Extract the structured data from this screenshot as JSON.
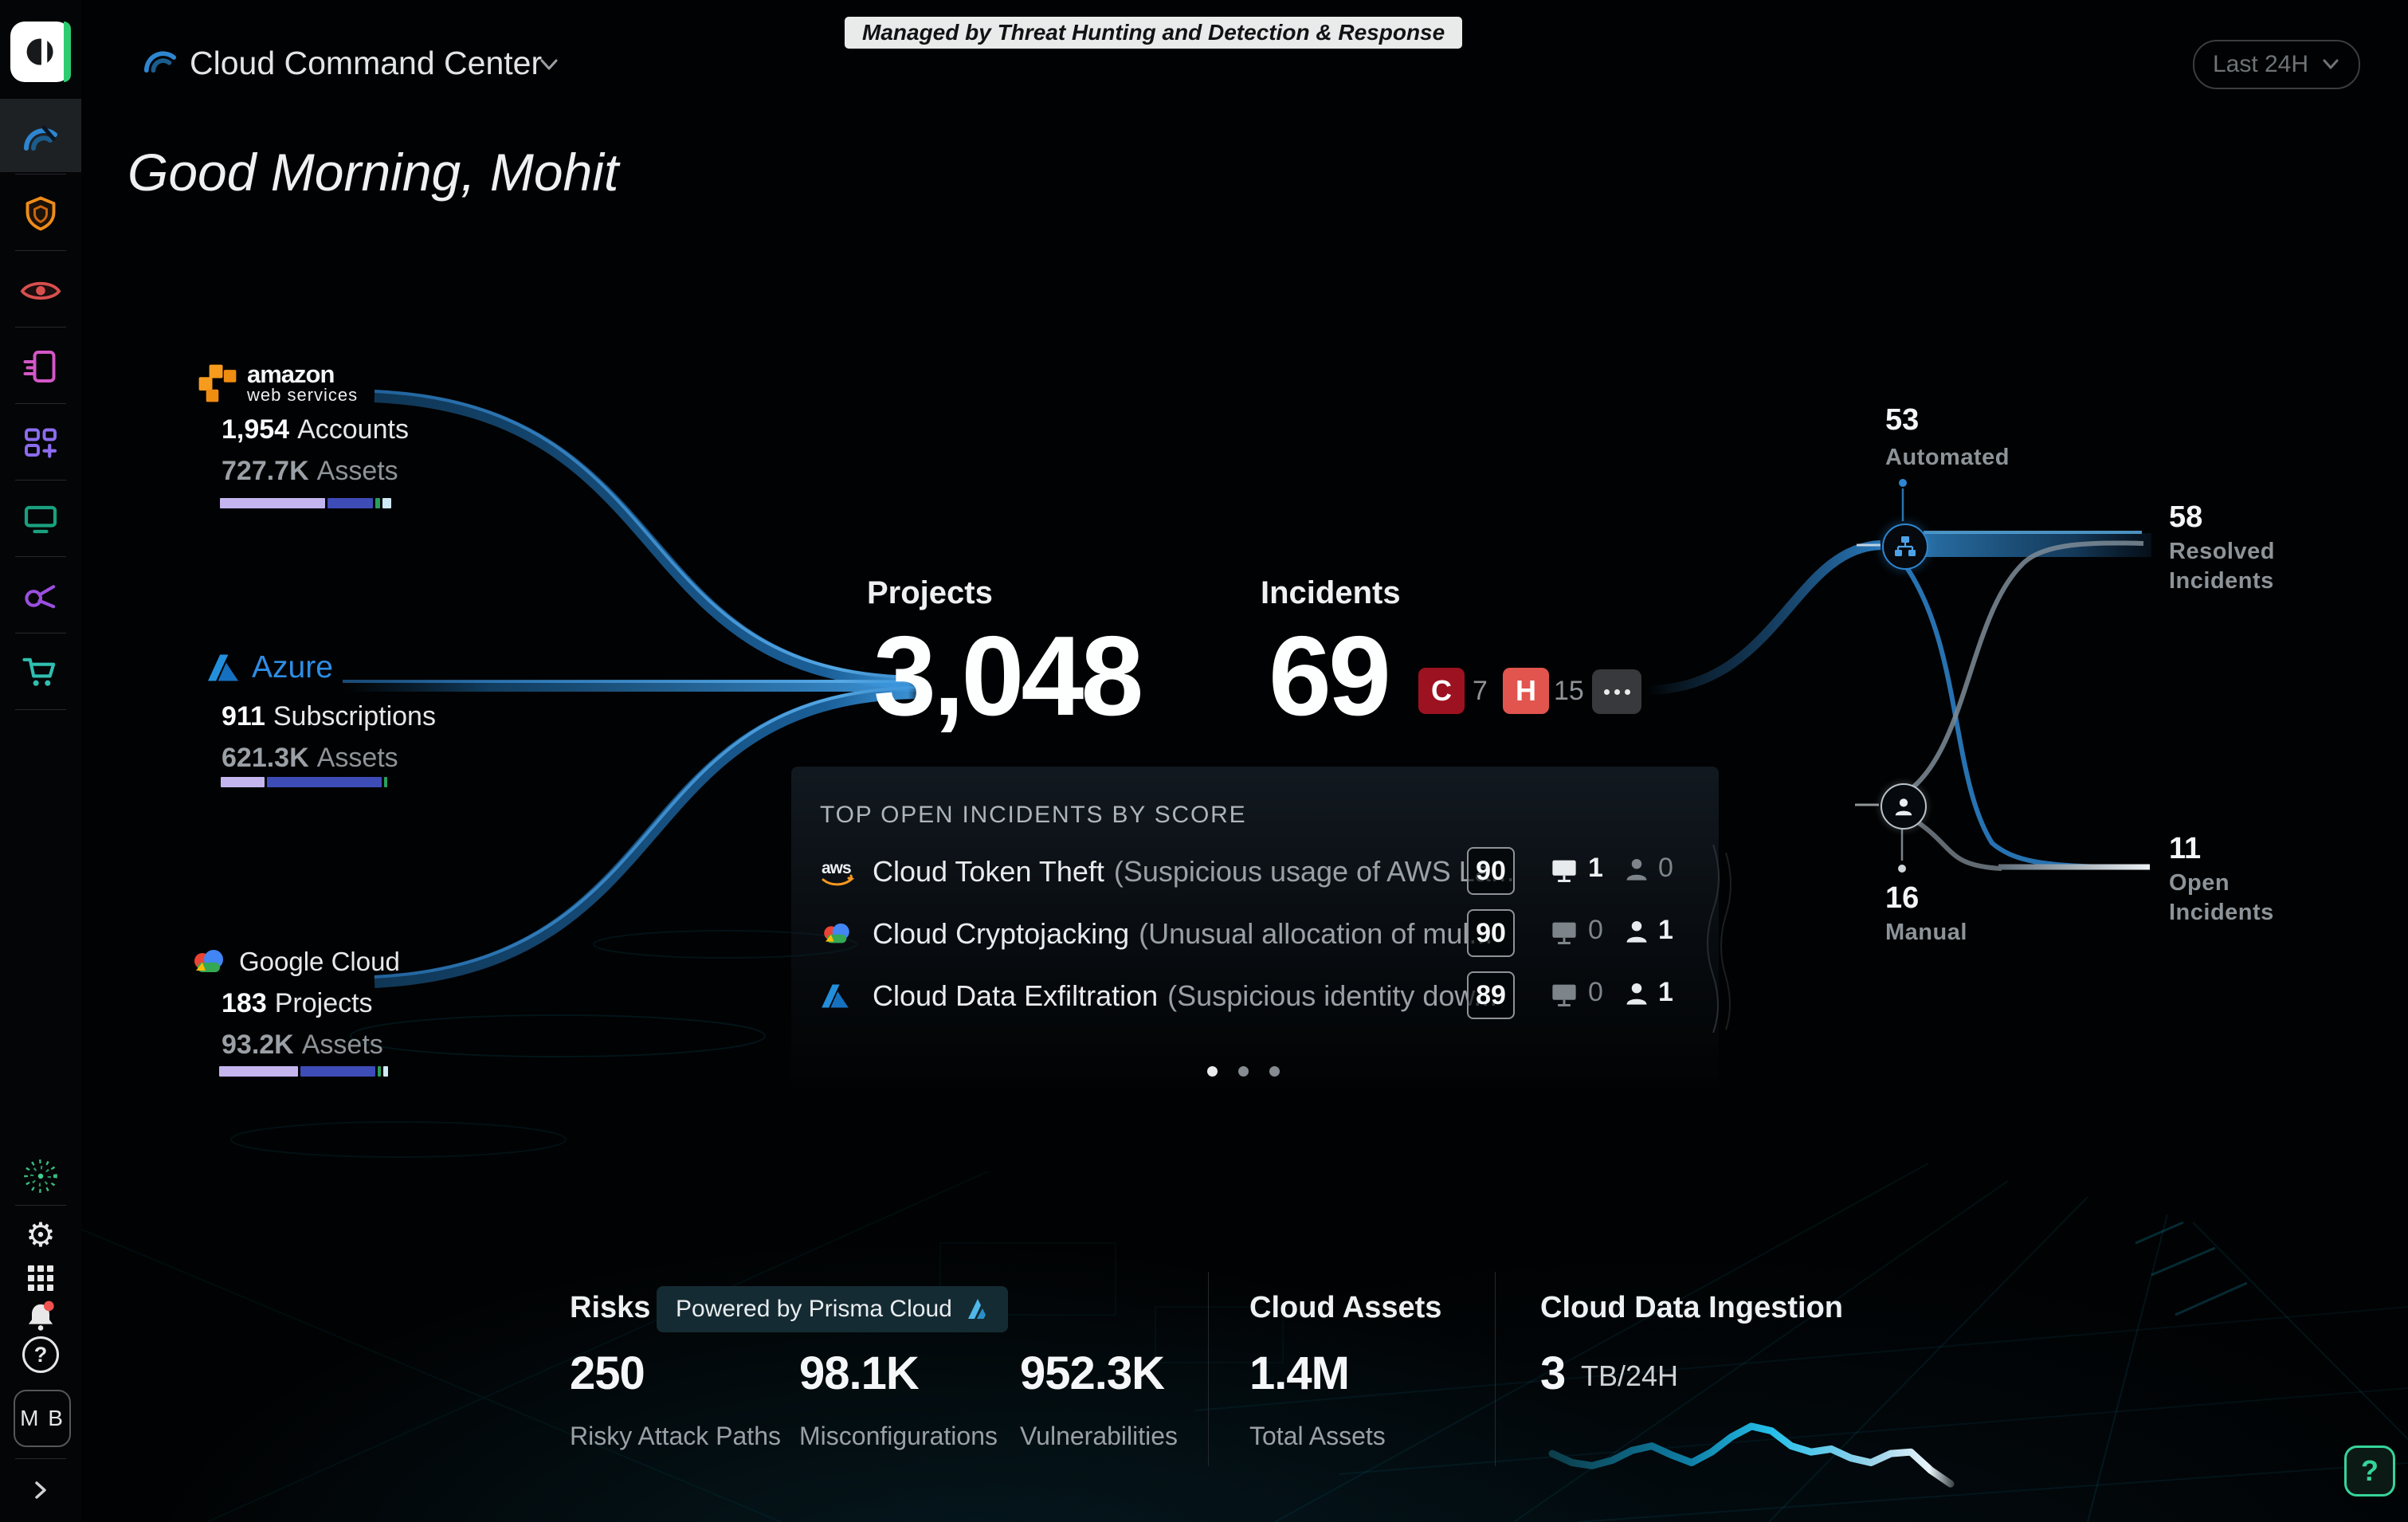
{
  "header": {
    "title": "Cloud Command Center",
    "managed_badge": "Managed by Threat Hunting and Detection & Response",
    "time_range": "Last 24H"
  },
  "greeting": "Good Morning, Mohit",
  "sidebar": {
    "logo_icon": "cortex-logo",
    "avatar": "M B",
    "items": [
      {
        "icon": "command-center-arcs-icon",
        "selected": true
      },
      {
        "icon": "shield-icon"
      },
      {
        "icon": "eye-icon"
      },
      {
        "icon": "report-document-icon"
      },
      {
        "icon": "dashboard-add-icon"
      },
      {
        "icon": "monitor-icon"
      },
      {
        "icon": "share-network-icon"
      },
      {
        "icon": "marketplace-cart-icon"
      }
    ],
    "bottom_items": [
      {
        "icon": "copilot-spiral-icon"
      },
      {
        "icon": "settings-gear-icon"
      },
      {
        "icon": "apps-grid-icon"
      },
      {
        "icon": "notifications-bell-icon",
        "has_badge": true
      },
      {
        "icon": "help-circle-icon"
      }
    ],
    "gear_glyph": "⚙"
  },
  "providers": [
    {
      "brand_line1": "amazon",
      "brand_line2": "web services",
      "count": "1,954",
      "count_label": "Accounts",
      "assets": "727.7K",
      "assets_label": "Assets",
      "segments": [
        {
          "pct": 62,
          "color": "#c4b5ef"
        },
        {
          "pct": 27,
          "color": "#3e4cb8"
        },
        {
          "pct": 3,
          "color": "#27a05e"
        },
        {
          "pct": 5,
          "color": "#cfe9f5"
        }
      ]
    },
    {
      "brand": "Azure",
      "count": "911",
      "count_label": "Subscriptions",
      "assets": "621.3K",
      "assets_label": "Assets",
      "segments": [
        {
          "pct": 27,
          "color": "#c4b5ef"
        },
        {
          "pct": 70,
          "color": "#3e4cb8"
        },
        {
          "pct": 2,
          "color": "#27a05e"
        }
      ]
    },
    {
      "brand": "Google Cloud",
      "count": "183",
      "count_label": "Projects",
      "assets": "93.2K",
      "assets_label": "Assets",
      "segments": [
        {
          "pct": 49,
          "color": "#c4b5ef"
        },
        {
          "pct": 46,
          "color": "#3e4cb8"
        },
        {
          "pct": 2,
          "color": "#27a05e"
        },
        {
          "pct": 3,
          "color": "#cfe9f5"
        }
      ]
    }
  ],
  "center": {
    "projects_label": "Projects",
    "projects_value": "3,048",
    "incidents_label": "Incidents",
    "incidents_value": "69",
    "severity": [
      {
        "code": "C",
        "count": "7",
        "color": "#9d1220"
      },
      {
        "code": "H",
        "count": "15",
        "color": "#e2544e"
      }
    ],
    "more_icon": "ellipsis-icon"
  },
  "incidents_panel": {
    "title": "TOP OPEN INCIDENTS BY SCORE",
    "rows": [
      {
        "provider_icon": "aws-icon",
        "name": "Cloud Token Theft",
        "desc": "(Suspicious usage of AWS La...",
        "score": "90",
        "monitor_count": "1",
        "user_count": "0"
      },
      {
        "provider_icon": "google-cloud-icon",
        "name": "Cloud Cryptojacking",
        "desc": "(Unusual allocation of mul...",
        "score": "90",
        "monitor_count": "0",
        "user_count": "1"
      },
      {
        "provider_icon": "azure-icon",
        "name": "Cloud Data Exfiltration",
        "desc": "(Suspicious identity dow...",
        "score": "89",
        "monitor_count": "0",
        "user_count": "1"
      }
    ],
    "pagination_dots": 3
  },
  "flow": {
    "automated_value": "53",
    "automated_label": "Automated",
    "manual_value": "16",
    "manual_label": "Manual",
    "resolved_value": "58",
    "resolved_label": "Resolved Incidents",
    "open_value": "11",
    "open_label": "Open Incidents"
  },
  "bottom": {
    "risks_title": "Risks",
    "powered_by": "Powered by Prisma Cloud",
    "prisma_icon": "prisma-cloud-icon",
    "stats": [
      {
        "value": "250",
        "label": "Risky Attack Paths"
      },
      {
        "value": "98.1K",
        "label": "Misconfigurations"
      },
      {
        "value": "952.3K",
        "label": "Vulnerabilities"
      }
    ],
    "cloud_assets_title": "Cloud Assets",
    "cloud_assets_value": "1.4M",
    "cloud_assets_label": "Total Assets",
    "ingestion_title": "Cloud Data Ingestion",
    "ingestion_value": "3",
    "ingestion_unit": "TB/24H",
    "ingestion_spark": [
      0.42,
      0.3,
      0.26,
      0.33,
      0.46,
      0.52,
      0.4,
      0.3,
      0.44,
      0.64,
      0.78,
      0.72,
      0.52,
      0.44,
      0.48,
      0.36,
      0.3,
      0.42,
      0.44,
      0.2,
      0.02
    ]
  },
  "help_label": "?",
  "colors": {
    "accent_blue": "#2e86d0",
    "lavender": "#c4b5ef",
    "indigo": "#3e4cb8",
    "green": "#27a05e",
    "light_cyan": "#cfe9f5",
    "critical": "#9d1220",
    "high": "#e2544e",
    "help_green": "#35d49a"
  }
}
